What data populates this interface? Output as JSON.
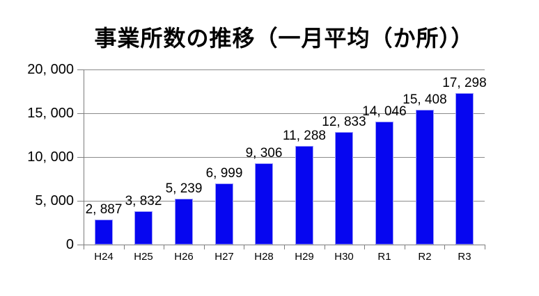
{
  "chart_data": {
    "type": "bar",
    "title": "事業所数の推移（一月平均（か所））",
    "categories": [
      "H24",
      "H25",
      "H26",
      "H27",
      "H28",
      "H29",
      "H30",
      "R1",
      "R2",
      "R3"
    ],
    "values": [
      2887,
      3832,
      5239,
      6999,
      9306,
      11288,
      12833,
      14046,
      15408,
      17298
    ],
    "value_labels": [
      "2, 887",
      "3, 832",
      "5, 239",
      "6, 999",
      "9, 306",
      "11, 288",
      "12, 833",
      "14, 046",
      "15, 408",
      "17, 298"
    ],
    "xlabel": "",
    "ylabel": "",
    "ylim": [
      0,
      20000
    ],
    "ytick_interval": 5000,
    "ytick_labels": [
      "0",
      "5, 000",
      "10, 000",
      "15, 000",
      "20, 000"
    ],
    "grid": true,
    "legend": false,
    "colors": {
      "bar_fill": "#0606F0",
      "bar_border": "#9C9CF8",
      "gridline": "#8A8A8A",
      "axis": "#7D7D7D",
      "text": "#000000",
      "background": "#FFFFFF"
    }
  }
}
